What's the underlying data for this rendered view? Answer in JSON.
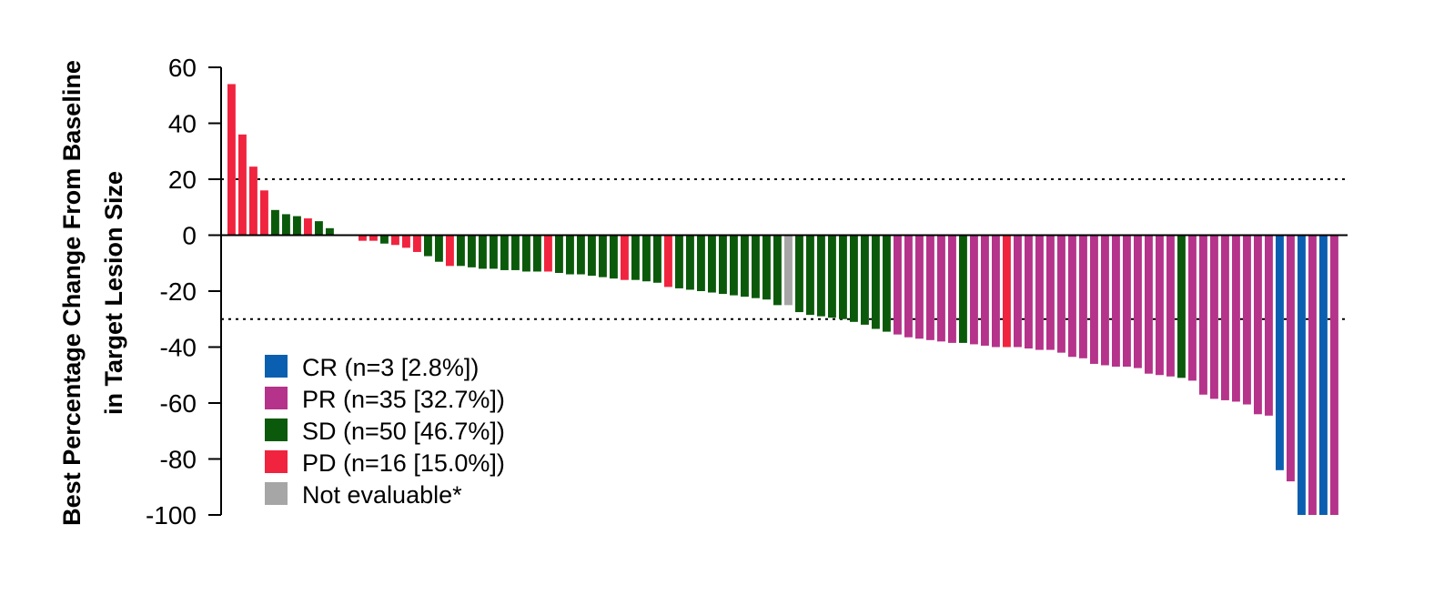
{
  "chart_data": {
    "type": "bar",
    "ylabel_lines": [
      "Best Percentage Change From Baseline",
      "in Target Lesion Size"
    ],
    "ylim": [
      -100,
      60
    ],
    "yticks": [
      60,
      40,
      20,
      0,
      -20,
      -40,
      -60,
      -80,
      -100
    ],
    "reference_lines": [
      20,
      -30
    ],
    "colors": {
      "CR": "#0b5fb0",
      "PR": "#b5338a",
      "SD": "#0b5a0b",
      "PD": "#f0243f",
      "NE": "#a6a6a6"
    },
    "legend": [
      {
        "key": "CR",
        "label": "CR (n=3 [2.8%])"
      },
      {
        "key": "PR",
        "label": "PR (n=35 [32.7%])"
      },
      {
        "key": "SD",
        "label": "SD (n=50 [46.7%])"
      },
      {
        "key": "PD",
        "label": "PD (n=16 [15.0%])"
      },
      {
        "key": "NE",
        "label": "Not evaluable*"
      }
    ],
    "bars": [
      {
        "v": 54,
        "c": "PD"
      },
      {
        "v": 36,
        "c": "PD"
      },
      {
        "v": 24.5,
        "c": "PD"
      },
      {
        "v": 16,
        "c": "PD"
      },
      {
        "v": 9,
        "c": "SD"
      },
      {
        "v": 7.5,
        "c": "SD"
      },
      {
        "v": 6.8,
        "c": "SD"
      },
      {
        "v": 6,
        "c": "PD"
      },
      {
        "v": 5,
        "c": "SD"
      },
      {
        "v": 2.5,
        "c": "SD"
      },
      {
        "v": 0,
        "c": "SD"
      },
      {
        "v": 0,
        "c": "SD"
      },
      {
        "v": -2,
        "c": "PD"
      },
      {
        "v": -2,
        "c": "PD"
      },
      {
        "v": -3,
        "c": "SD"
      },
      {
        "v": -3.5,
        "c": "PD"
      },
      {
        "v": -4.5,
        "c": "PD"
      },
      {
        "v": -6,
        "c": "PD"
      },
      {
        "v": -7.5,
        "c": "SD"
      },
      {
        "v": -9.5,
        "c": "SD"
      },
      {
        "v": -11,
        "c": "PD"
      },
      {
        "v": -11,
        "c": "SD"
      },
      {
        "v": -11.5,
        "c": "SD"
      },
      {
        "v": -12,
        "c": "SD"
      },
      {
        "v": -12,
        "c": "SD"
      },
      {
        "v": -12.5,
        "c": "SD"
      },
      {
        "v": -12.5,
        "c": "SD"
      },
      {
        "v": -13,
        "c": "SD"
      },
      {
        "v": -13,
        "c": "SD"
      },
      {
        "v": -13,
        "c": "PD"
      },
      {
        "v": -13.5,
        "c": "SD"
      },
      {
        "v": -14,
        "c": "SD"
      },
      {
        "v": -14,
        "c": "SD"
      },
      {
        "v": -14.5,
        "c": "SD"
      },
      {
        "v": -15,
        "c": "SD"
      },
      {
        "v": -15.5,
        "c": "SD"
      },
      {
        "v": -16,
        "c": "PD"
      },
      {
        "v": -16,
        "c": "SD"
      },
      {
        "v": -16.5,
        "c": "SD"
      },
      {
        "v": -17,
        "c": "SD"
      },
      {
        "v": -18.5,
        "c": "PD"
      },
      {
        "v": -19,
        "c": "SD"
      },
      {
        "v": -19.5,
        "c": "SD"
      },
      {
        "v": -20,
        "c": "SD"
      },
      {
        "v": -20.5,
        "c": "SD"
      },
      {
        "v": -21,
        "c": "SD"
      },
      {
        "v": -21.5,
        "c": "SD"
      },
      {
        "v": -22,
        "c": "SD"
      },
      {
        "v": -22.5,
        "c": "SD"
      },
      {
        "v": -23,
        "c": "SD"
      },
      {
        "v": -25,
        "c": "SD"
      },
      {
        "v": -25,
        "c": "NE"
      },
      {
        "v": -27.5,
        "c": "SD"
      },
      {
        "v": -28.5,
        "c": "SD"
      },
      {
        "v": -29,
        "c": "SD"
      },
      {
        "v": -29.5,
        "c": "SD"
      },
      {
        "v": -30,
        "c": "SD"
      },
      {
        "v": -31,
        "c": "SD"
      },
      {
        "v": -32,
        "c": "SD"
      },
      {
        "v": -33.5,
        "c": "SD"
      },
      {
        "v": -34.5,
        "c": "SD"
      },
      {
        "v": -35.5,
        "c": "PR"
      },
      {
        "v": -36.5,
        "c": "PR"
      },
      {
        "v": -37,
        "c": "PR"
      },
      {
        "v": -37.5,
        "c": "PR"
      },
      {
        "v": -38,
        "c": "PR"
      },
      {
        "v": -38.5,
        "c": "PR"
      },
      {
        "v": -38.5,
        "c": "SD"
      },
      {
        "v": -39,
        "c": "PR"
      },
      {
        "v": -39.5,
        "c": "PR"
      },
      {
        "v": -40,
        "c": "PR"
      },
      {
        "v": -40,
        "c": "PD"
      },
      {
        "v": -40,
        "c": "PR"
      },
      {
        "v": -40.5,
        "c": "PR"
      },
      {
        "v": -41,
        "c": "PR"
      },
      {
        "v": -41,
        "c": "PR"
      },
      {
        "v": -42,
        "c": "PR"
      },
      {
        "v": -43.5,
        "c": "PR"
      },
      {
        "v": -44,
        "c": "PR"
      },
      {
        "v": -46,
        "c": "PR"
      },
      {
        "v": -46.5,
        "c": "PR"
      },
      {
        "v": -47,
        "c": "PR"
      },
      {
        "v": -47,
        "c": "PR"
      },
      {
        "v": -47.5,
        "c": "PR"
      },
      {
        "v": -49.5,
        "c": "PR"
      },
      {
        "v": -50,
        "c": "PR"
      },
      {
        "v": -50.5,
        "c": "PR"
      },
      {
        "v": -51,
        "c": "SD"
      },
      {
        "v": -52,
        "c": "PR"
      },
      {
        "v": -57,
        "c": "PR"
      },
      {
        "v": -58.5,
        "c": "PR"
      },
      {
        "v": -59,
        "c": "PR"
      },
      {
        "v": -59.5,
        "c": "PR"
      },
      {
        "v": -60.5,
        "c": "PR"
      },
      {
        "v": -64,
        "c": "PR"
      },
      {
        "v": -64.5,
        "c": "PR"
      },
      {
        "v": -84,
        "c": "CR"
      },
      {
        "v": -88,
        "c": "PR"
      },
      {
        "v": -100,
        "c": "CR"
      },
      {
        "v": -100,
        "c": "PR"
      },
      {
        "v": -100,
        "c": "CR"
      },
      {
        "v": -100,
        "c": "PR"
      }
    ]
  }
}
